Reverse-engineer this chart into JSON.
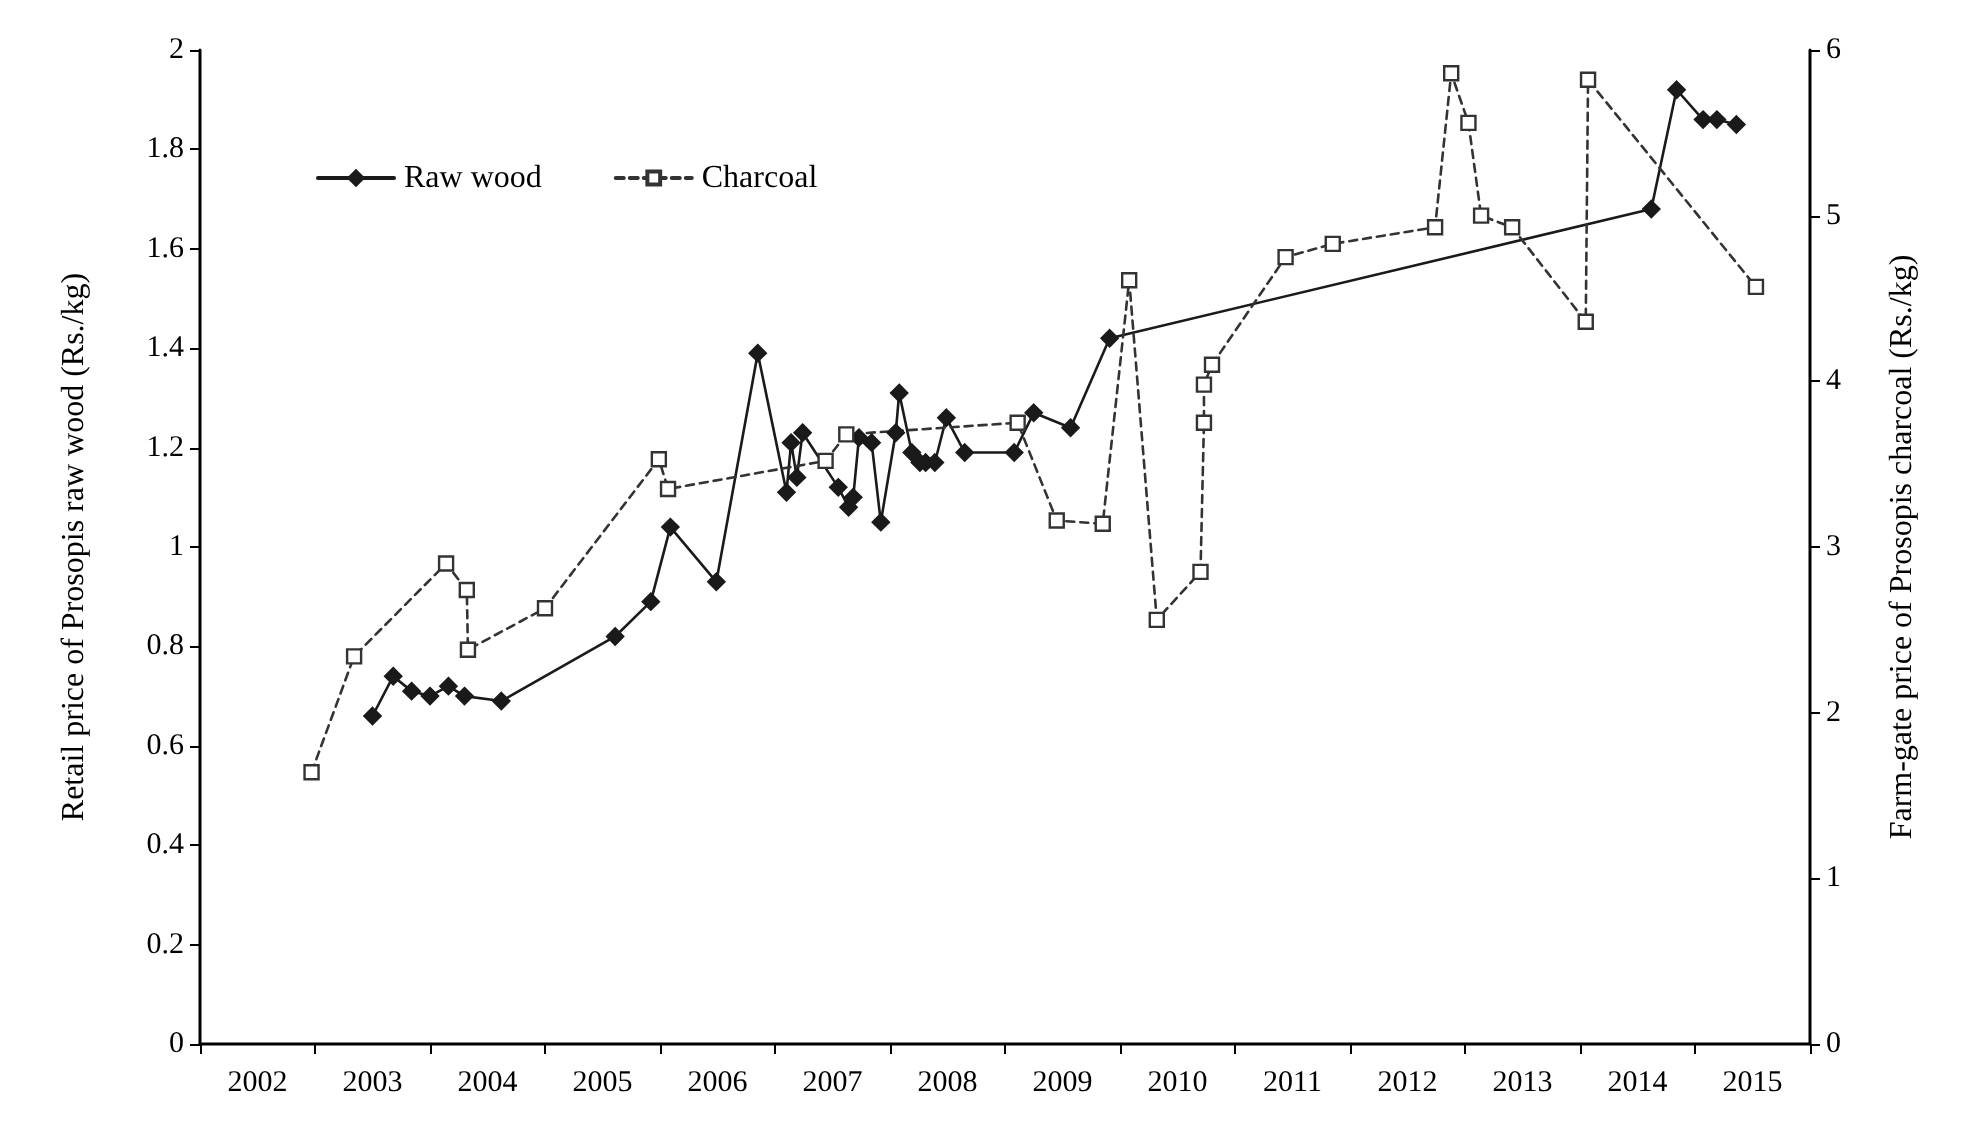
{
  "chart_data": {
    "type": "line",
    "ylabel": "Retail price of Prosopis raw wood (Rs./kg)",
    "y2label": "Farm-gate price of Prosopis charcoal (Rs./kg)",
    "xlim": [
      2002,
      2016
    ],
    "xticks": [
      {
        "value": 2002,
        "label": null
      },
      {
        "value": 2002.5,
        "label": "2002"
      },
      {
        "value": 2003,
        "label": null
      },
      {
        "value": 2003.5,
        "label": "2003"
      },
      {
        "value": 2004,
        "label": null
      },
      {
        "value": 2004.5,
        "label": "2004"
      },
      {
        "value": 2005,
        "label": null
      },
      {
        "value": 2005.5,
        "label": "2005"
      },
      {
        "value": 2006,
        "label": null
      },
      {
        "value": 2006.5,
        "label": "2006"
      },
      {
        "value": 2007,
        "label": null
      },
      {
        "value": 2007.5,
        "label": "2007"
      },
      {
        "value": 2008,
        "label": null
      },
      {
        "value": 2008.5,
        "label": "2008"
      },
      {
        "value": 2009,
        "label": null
      },
      {
        "value": 2009.5,
        "label": "2009"
      },
      {
        "value": 2010,
        "label": null
      },
      {
        "value": 2010.5,
        "label": "2010"
      },
      {
        "value": 2011,
        "label": null
      },
      {
        "value": 2011.5,
        "label": "2011"
      },
      {
        "value": 2012,
        "label": null
      },
      {
        "value": 2012.5,
        "label": "2012"
      },
      {
        "value": 2013,
        "label": null
      },
      {
        "value": 2013.5,
        "label": "2013"
      },
      {
        "value": 2014,
        "label": null
      },
      {
        "value": 2014.5,
        "label": "2014"
      },
      {
        "value": 2015,
        "label": null
      },
      {
        "value": 2015.5,
        "label": "2015"
      },
      {
        "value": 2016,
        "label": null
      }
    ],
    "ylim": [
      0,
      2
    ],
    "yticks": [
      0,
      0.2,
      0.4,
      0.6,
      0.8,
      1,
      1.2,
      1.4,
      1.6,
      1.8,
      2
    ],
    "y2lim": [
      0,
      6
    ],
    "y2ticks": [
      0,
      1,
      2,
      3,
      4,
      5,
      6
    ],
    "grid": false,
    "legend": "top left",
    "series": [
      {
        "name": "Raw wood",
        "color": "#1a1a1a",
        "marker": "diamond",
        "line_style": "solid",
        "axis": "y",
        "x": [
          2003.5,
          2003.68,
          2003.84,
          2004.0,
          2004.16,
          2004.3,
          2004.62,
          2005.61,
          2005.92,
          2006.09,
          2006.49,
          2006.85,
          2007.1,
          2007.14,
          2007.19,
          2007.24,
          2007.55,
          2007.64,
          2007.68,
          2007.73,
          2007.84,
          2007.92,
          2008.05,
          2008.08,
          2008.19,
          2008.26,
          2008.31,
          2008.39,
          2008.49,
          2008.65,
          2009.08,
          2009.25,
          2009.57,
          2009.91,
          2014.62,
          2014.84,
          2015.07,
          2015.19,
          2015.36
        ],
        "values": [
          0.66,
          0.74,
          0.71,
          0.7,
          0.72,
          0.7,
          0.69,
          0.82,
          0.89,
          1.04,
          0.93,
          1.39,
          1.11,
          1.21,
          1.14,
          1.23,
          1.12,
          1.08,
          1.1,
          1.22,
          1.21,
          1.05,
          1.23,
          1.31,
          1.19,
          1.17,
          1.17,
          1.17,
          1.26,
          1.19,
          1.19,
          1.27,
          1.24,
          1.42,
          1.68,
          1.92,
          1.86,
          1.86,
          1.85
        ]
      },
      {
        "name": "Charcoal",
        "color": "#333333",
        "marker": "square",
        "line_style": "dashed",
        "axis": "y2",
        "x": [
          2002.97,
          2003.34,
          2004.14,
          2004.32,
          2004.33,
          2005.0,
          2005.99,
          2006.07,
          2007.44,
          2007.62,
          2009.11,
          2009.45,
          2009.85,
          2010.08,
          2010.32,
          2010.7,
          2010.73,
          2010.73,
          2010.8,
          2011.44,
          2011.85,
          2012.74,
          2012.88,
          2013.03,
          2013.14,
          2013.41,
          2014.05,
          2014.07,
          2015.53
        ],
        "values": [
          1.64,
          2.34,
          2.9,
          2.74,
          2.38,
          2.63,
          3.53,
          3.35,
          3.52,
          3.68,
          3.75,
          3.16,
          3.14,
          4.61,
          2.56,
          2.85,
          3.75,
          3.98,
          4.1,
          4.75,
          4.83,
          4.93,
          5.86,
          5.56,
          5.0,
          4.93,
          4.36,
          5.82,
          4.57
        ]
      }
    ]
  }
}
